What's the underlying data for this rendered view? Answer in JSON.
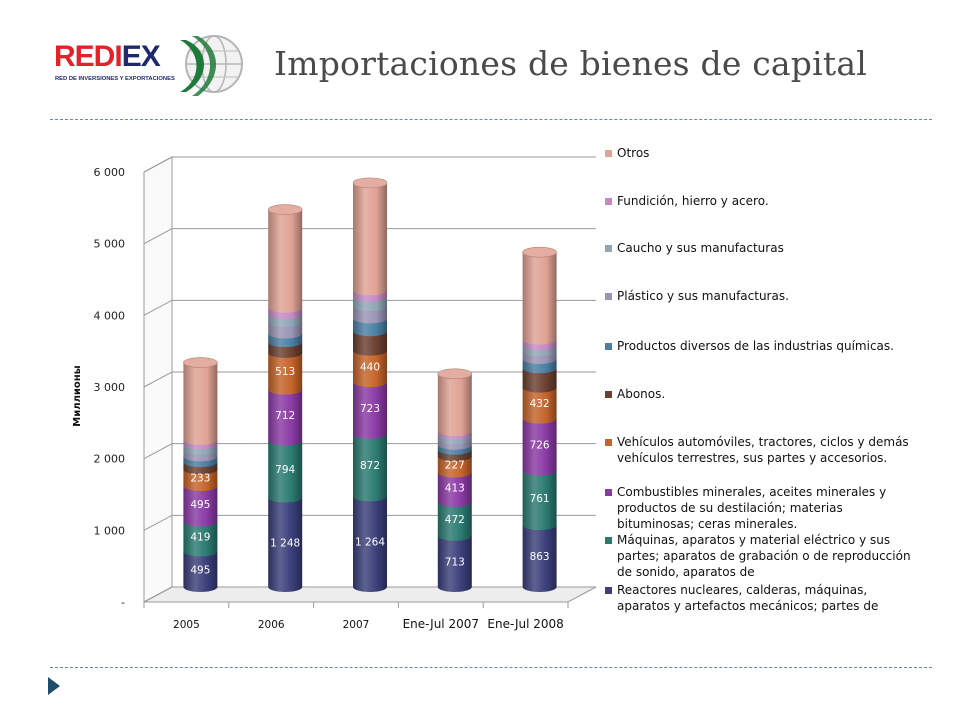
{
  "header": {
    "title": "Importaciones de bienes de capital",
    "logo": {
      "name": "REDIEX",
      "name_red_part": "REDI",
      "name_dark_part": "EX",
      "tagline": "RED DE INVERSIONES Y EXPORTACIONES",
      "colors": {
        "red": "#e2232a",
        "navy": "#1f2a6b",
        "green": "#1e7a3a"
      }
    }
  },
  "chart_data": {
    "type": "bar",
    "stacked": true,
    "style": "3d-cylinder",
    "ylabel": "Миллионы",
    "ylim": [
      0,
      6000
    ],
    "yticks": [
      {
        "value": 0,
        "label": "-"
      },
      {
        "value": 1000,
        "label": "1 000"
      },
      {
        "value": 2000,
        "label": "2 000"
      },
      {
        "value": 3000,
        "label": "3 000"
      },
      {
        "value": 4000,
        "label": "4 000"
      },
      {
        "value": 5000,
        "label": "5 000"
      },
      {
        "value": 6000,
        "label": "6 000"
      }
    ],
    "grid": true,
    "legend_position": "right",
    "categories": [
      "2005",
      "2006",
      "2007",
      "Ene-Jul 2007",
      "Ene-Jul 2008"
    ],
    "series": [
      {
        "name": "Reactores nucleares, calderas, máquinas, aparatos y artefactos mecánicos; partes de",
        "color": "#3b3f7a",
        "values": [
          495,
          1248,
          1264,
          713,
          863
        ],
        "labels": [
          "495",
          "1 248",
          "1 264",
          "713",
          "863"
        ]
      },
      {
        "name": "Máquinas, aparatos y material eléctrico y sus partes; aparatos de grabación o de reproducción de sonido, aparatos de",
        "color": "#2a7a70",
        "values": [
          419,
          794,
          872,
          472,
          761
        ],
        "labels": [
          "419",
          "794",
          "872",
          "472",
          "761"
        ]
      },
      {
        "name": "Combustibles minerales, aceites minerales y productos de su destilación; materias bituminosas; ceras minerales.",
        "color": "#8a3aa5",
        "values": [
          495,
          712,
          723,
          413,
          726
        ],
        "labels": [
          "495",
          "712",
          "723",
          "413",
          "726"
        ]
      },
      {
        "name": "Vehículos automóviles, tractores, ciclos y demás vehículos terrestres, sus partes y accesorios.",
        "color": "#c5642a",
        "values": [
          233,
          513,
          440,
          227,
          432
        ],
        "labels": [
          "233",
          "513",
          "440",
          "227",
          "432"
        ]
      },
      {
        "name": "Abonos.",
        "color": "#6b4030",
        "values": [
          100,
          150,
          270,
          90,
          270
        ],
        "labels": [
          "",
          "",
          "",
          "",
          ""
        ]
      },
      {
        "name": "Productos diversos de las industrias químicas.",
        "color": "#4a7fa3",
        "values": [
          80,
          120,
          180,
          70,
          130
        ],
        "labels": [
          "",
          "",
          "",
          "",
          ""
        ]
      },
      {
        "name": "Plástico y sus manufacturas.",
        "color": "#9a94b5",
        "values": [
          90,
          160,
          170,
          80,
          110
        ],
        "labels": [
          "",
          "",
          "",
          "",
          ""
        ]
      },
      {
        "name": "Caucho y sus manufacturas",
        "color": "#8fa6b5",
        "values": [
          80,
          110,
          130,
          60,
          80
        ],
        "labels": [
          "",
          "",
          "",
          "",
          ""
        ]
      },
      {
        "name": "Fundición, hierro y acero.",
        "color": "#c58ac5",
        "values": [
          60,
          90,
          90,
          50,
          80
        ],
        "labels": [
          "",
          "",
          "",
          "",
          ""
        ]
      },
      {
        "name": "Otros",
        "color": "#dfa294",
        "values": [
          1080,
          1370,
          1500,
          800,
          1220
        ],
        "labels": [
          "",
          "",
          "",
          "",
          ""
        ]
      }
    ]
  }
}
